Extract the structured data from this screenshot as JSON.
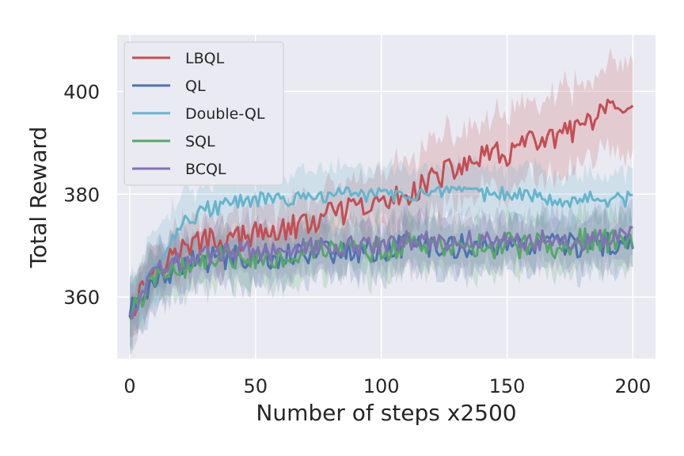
{
  "chart_data": {
    "type": "line",
    "title": "",
    "xlabel": "Number of steps x2500",
    "ylabel": "Total Reward",
    "xlim": [
      -5,
      209
    ],
    "ylim": [
      348,
      411
    ],
    "xticks": [
      0,
      50,
      100,
      150,
      200
    ],
    "yticks": [
      360,
      380,
      400
    ],
    "grid": true,
    "legend_position": "top-left",
    "background": "#eaeaf2",
    "series": [
      {
        "name": "LBQL",
        "color": "#c44e52",
        "x": [
          0,
          10,
          20,
          30,
          40,
          50,
          60,
          70,
          80,
          90,
          100,
          110,
          120,
          130,
          140,
          150,
          160,
          170,
          180,
          190,
          200
        ],
        "values": [
          357,
          366,
          369,
          371,
          371,
          372,
          373,
          374,
          376,
          377,
          378,
          380,
          383,
          385,
          387,
          388,
          390,
          391,
          393,
          396,
          395
        ],
        "band": [
          5,
          5,
          5,
          5,
          5,
          5,
          5,
          5,
          5,
          5,
          6,
          6,
          7,
          7,
          7,
          7,
          8,
          8,
          8,
          9,
          9
        ],
        "noise": 2.5
      },
      {
        "name": "QL",
        "color": "#4c72b0",
        "x": [
          0,
          10,
          20,
          30,
          40,
          50,
          60,
          70,
          80,
          90,
          100,
          110,
          120,
          130,
          140,
          150,
          160,
          170,
          180,
          190,
          200
        ],
        "values": [
          357,
          364,
          366,
          367,
          368,
          368,
          368,
          369,
          369,
          369,
          369,
          370,
          370,
          370,
          370,
          370,
          370,
          370,
          370,
          370,
          370
        ],
        "band": [
          6,
          5,
          5,
          5,
          5,
          5,
          5,
          5,
          5,
          5,
          5,
          5,
          5,
          5,
          5,
          5,
          5,
          5,
          5,
          5,
          5
        ],
        "noise": 2.5
      },
      {
        "name": "Double-QL",
        "color": "#64b5cd",
        "x": [
          0,
          10,
          20,
          30,
          40,
          50,
          60,
          70,
          80,
          90,
          100,
          110,
          120,
          130,
          140,
          150,
          160,
          170,
          180,
          190,
          200
        ],
        "values": [
          357,
          366,
          374,
          377,
          378,
          379,
          379,
          379,
          380,
          380,
          380,
          380,
          380,
          380,
          380,
          380,
          380,
          379,
          379,
          379,
          379
        ],
        "band": [
          6,
          6,
          6,
          5,
          5,
          5,
          5,
          5,
          5,
          5,
          5,
          5,
          5,
          5,
          5,
          5,
          5,
          5,
          5,
          5,
          5
        ],
        "noise": 1.5
      },
      {
        "name": "SQL",
        "color": "#55a868",
        "x": [
          0,
          10,
          20,
          30,
          40,
          50,
          60,
          70,
          80,
          90,
          100,
          110,
          120,
          130,
          140,
          150,
          160,
          170,
          180,
          190,
          200
        ],
        "values": [
          356,
          364,
          366,
          367,
          368,
          368,
          368,
          369,
          369,
          369,
          369,
          370,
          370,
          370,
          370,
          370,
          370,
          370,
          371,
          371,
          371
        ],
        "band": [
          6,
          5,
          5,
          5,
          5,
          5,
          5,
          5,
          5,
          5,
          5,
          5,
          5,
          5,
          5,
          5,
          5,
          5,
          5,
          5,
          5
        ],
        "noise": 2.5
      },
      {
        "name": "BCQL",
        "color": "#8172b2",
        "x": [
          0,
          10,
          20,
          30,
          40,
          50,
          60,
          70,
          80,
          90,
          100,
          110,
          120,
          130,
          140,
          150,
          160,
          170,
          180,
          190,
          200
        ],
        "values": [
          357,
          365,
          367,
          368,
          369,
          369,
          369,
          370,
          370,
          370,
          370,
          371,
          371,
          371,
          371,
          371,
          371,
          371,
          371,
          372,
          373
        ],
        "band": [
          6,
          5,
          5,
          5,
          5,
          5,
          5,
          5,
          5,
          5,
          5,
          5,
          5,
          5,
          5,
          5,
          5,
          5,
          5,
          5,
          5
        ],
        "noise": 2.0
      }
    ]
  }
}
